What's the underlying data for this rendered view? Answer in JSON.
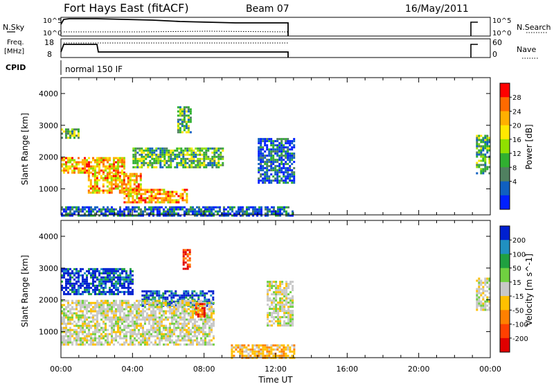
{
  "header": {
    "title": "Fort Hays East (fitACF)",
    "beam": "Beam 07",
    "date": "16/May/2011"
  },
  "nsky_panel": {
    "left_label": "N.Sky",
    "right_label": "N.Search",
    "top_tick": "10^5",
    "bottom_tick": "10^0"
  },
  "freq_panel": {
    "left_label_1": "Freq.",
    "left_label_2": "[MHz]",
    "left_ticks": [
      "18",
      "8"
    ],
    "right_label": "Nave",
    "right_ticks": [
      "60",
      "0"
    ]
  },
  "cpid": {
    "label": "CPID",
    "value": "normal 150 IF"
  },
  "colors": {
    "frame": "#000000",
    "grid": "#888888"
  },
  "chart_data": [
    {
      "type": "heatmap",
      "title": "",
      "xlabel": "",
      "ylabel": "Slant Range [km]",
      "x_range_hours": [
        0,
        24
      ],
      "y_range_km": [
        180,
        4500
      ],
      "y_ticks": [
        "1000",
        "2000",
        "3000",
        "4000"
      ],
      "colorbar": {
        "label": "Power [dB]",
        "ticks": [
          "28",
          "24",
          "20",
          "16",
          "12",
          "8",
          "4"
        ],
        "colors": [
          "#ff0000",
          "#ff6a00",
          "#ffb000",
          "#ffe800",
          "#90e000",
          "#30b030",
          "#508060",
          "#1060c0",
          "#0020ff"
        ]
      },
      "data_gap_hours": [
        13.0,
        23.2
      ],
      "echo_regions": [
        {
          "t_start": 0.0,
          "t_end": 3.5,
          "range_km": [
            1500,
            2000
          ],
          "level": "strong"
        },
        {
          "t_start": 1.5,
          "t_end": 4.5,
          "range_km": [
            900,
            1500
          ],
          "level": "strong"
        },
        {
          "t_start": 3.5,
          "t_end": 7.0,
          "range_km": [
            600,
            1000
          ],
          "level": "strong"
        },
        {
          "t_start": 4.0,
          "t_end": 9.0,
          "range_km": [
            1700,
            2300
          ],
          "level": "medium"
        },
        {
          "t_start": 0.0,
          "t_end": 1.0,
          "range_km": [
            2600,
            2900
          ],
          "level": "medium"
        },
        {
          "t_start": 6.5,
          "t_end": 7.2,
          "range_km": [
            2800,
            3600
          ],
          "level": "medium"
        },
        {
          "t_start": 11.0,
          "t_end": 13.0,
          "range_km": [
            1200,
            2600
          ],
          "level": "weak"
        },
        {
          "t_start": 0.0,
          "t_end": 13.0,
          "range_km": [
            180,
            450
          ],
          "level": "weak"
        },
        {
          "t_start": 23.2,
          "t_end": 24.0,
          "range_km": [
            1500,
            2700
          ],
          "level": "medium"
        }
      ]
    },
    {
      "type": "heatmap",
      "title": "",
      "xlabel": "Time UT",
      "ylabel": "Slant Range [km]",
      "x_range_hours": [
        0,
        24
      ],
      "x_ticks": [
        "00:00",
        "04:00",
        "08:00",
        "12:00",
        "16:00",
        "20:00",
        "00:00"
      ],
      "y_range_km": [
        180,
        4500
      ],
      "y_ticks": [
        "1000",
        "2000",
        "3000",
        "4000"
      ],
      "colorbar": {
        "label": "Velocity [m s^-1]",
        "ticks": [
          "200",
          "100",
          "50",
          "15",
          "-15",
          "-50",
          "-100",
          "-200"
        ],
        "colors": [
          "#0020d0",
          "#2090c0",
          "#20a040",
          "#70d040",
          "#c8c8c8",
          "#ffc000",
          "#ff8000",
          "#ff4000",
          "#e00000"
        ]
      },
      "data_gap_hours": [
        13.0,
        23.2
      ],
      "echo_regions": [
        {
          "t_start": 0.0,
          "t_end": 4.0,
          "range_km": [
            2200,
            3000
          ],
          "level": "positive-high"
        },
        {
          "t_start": 4.5,
          "t_end": 8.5,
          "range_km": [
            1800,
            2300
          ],
          "level": "positive-high"
        },
        {
          "t_start": 0.0,
          "t_end": 8.5,
          "range_km": [
            600,
            2000
          ],
          "level": "near-zero"
        },
        {
          "t_start": 6.8,
          "t_end": 7.2,
          "range_km": [
            3000,
            3600
          ],
          "level": "negative-high"
        },
        {
          "t_start": 7.5,
          "t_end": 8.0,
          "range_km": [
            1500,
            1900
          ],
          "level": "negative"
        },
        {
          "t_start": 9.5,
          "t_end": 13.0,
          "range_km": [
            180,
            600
          ],
          "level": "negative-low"
        },
        {
          "t_start": 11.5,
          "t_end": 13.0,
          "range_km": [
            1200,
            2600
          ],
          "level": "near-zero"
        },
        {
          "t_start": 23.2,
          "t_end": 24.0,
          "range_km": [
            1700,
            2700
          ],
          "level": "near-zero"
        }
      ]
    }
  ]
}
